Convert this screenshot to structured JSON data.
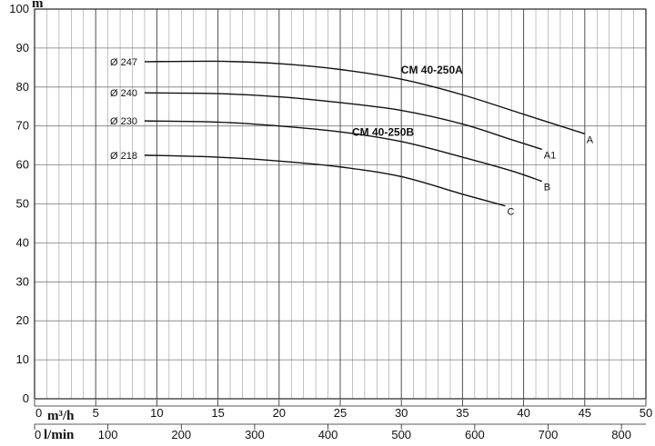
{
  "chart_data": {
    "type": "line",
    "ylabel": "m",
    "xlabel_m3h": "m³/h",
    "xlabel_lmin": "l/min",
    "xlim": [
      0,
      50
    ],
    "ylim": [
      0,
      100
    ],
    "y_ticks": [
      0,
      10,
      20,
      30,
      40,
      50,
      60,
      70,
      80,
      90,
      100
    ],
    "x_ticks_m3h": [
      0,
      5,
      10,
      15,
      20,
      25,
      30,
      35,
      40,
      45,
      50
    ],
    "x_ticks_lmin": [
      0,
      100,
      200,
      300,
      400,
      500,
      600,
      700,
      800
    ],
    "grid": true,
    "series": [
      {
        "name": "A",
        "diameter_label": "Ø 247",
        "points": [
          [
            9,
            86.5
          ],
          [
            15,
            86.6
          ],
          [
            20,
            86.0
          ],
          [
            25,
            84.5
          ],
          [
            30,
            82.0
          ],
          [
            35,
            78.0
          ],
          [
            40,
            73.0
          ],
          [
            45,
            68.0
          ],
          [
            47.8,
            68.0
          ]
        ]
      },
      {
        "name": "A1",
        "diameter_label": "Ø 240",
        "points": [
          [
            9,
            78.5
          ],
          [
            15,
            78.3
          ],
          [
            20,
            77.5
          ],
          [
            25,
            76.0
          ],
          [
            30,
            74.0
          ],
          [
            35,
            70.5
          ],
          [
            39,
            66.5
          ],
          [
            41.5,
            64.0
          ]
        ]
      },
      {
        "name": "B",
        "diameter_label": "Ø 230",
        "points": [
          [
            9,
            71.3
          ],
          [
            15,
            71.0
          ],
          [
            20,
            70.0
          ],
          [
            25,
            68.5
          ],
          [
            30,
            66.0
          ],
          [
            35,
            62.0
          ],
          [
            39,
            58.5
          ],
          [
            41.5,
            55.8
          ]
        ]
      },
      {
        "name": "C",
        "diameter_label": "Ø 218",
        "points": [
          [
            9,
            62.5
          ],
          [
            15,
            62.0
          ],
          [
            20,
            61.0
          ],
          [
            25,
            59.5
          ],
          [
            30,
            57.0
          ],
          [
            35,
            52.5
          ],
          [
            38.5,
            49.5
          ]
        ]
      }
    ],
    "annotations": [
      {
        "text": "CM 40-250A",
        "x": 32.5,
        "y": 83.5
      },
      {
        "text": "CM 40-250B",
        "x": 28.5,
        "y": 67.5
      }
    ]
  }
}
